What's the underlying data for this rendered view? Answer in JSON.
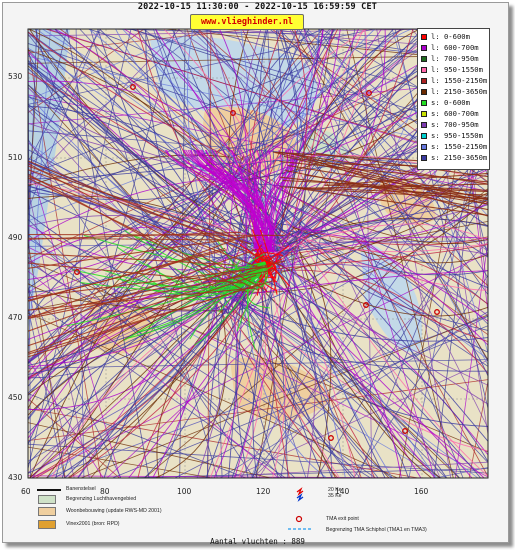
{
  "header": {
    "title": "2022-10-15 11:30:00 - 2022-10-15 16:59:59 CET",
    "brand": "www.vlieghinder.nl"
  },
  "axes": {
    "y_ticks": [
      "530",
      "510",
      "490",
      "470",
      "450",
      "430"
    ],
    "x_ticks": [
      "80",
      "100",
      "120",
      "140",
      "160"
    ],
    "origin_x": "60"
  },
  "legend": [
    {
      "label": "l: 0-600m",
      "color": "#ff0000"
    },
    {
      "label": "l: 600-700m",
      "color": "#aa00cc"
    },
    {
      "label": "l: 700-950m",
      "color": "#1f6b1f"
    },
    {
      "label": "l: 950-1550m",
      "color": "#ff66aa"
    },
    {
      "label": "l: 1550-2150m",
      "color": "#aa2222"
    },
    {
      "label": "l: 2150-3650m",
      "color": "#6b2a00"
    },
    {
      "label": "s: 0-600m",
      "color": "#22dd22"
    },
    {
      "label": "s: 600-700m",
      "color": "#c8e000"
    },
    {
      "label": "s: 700-950m",
      "color": "#7d3cb0"
    },
    {
      "label": "s: 950-1550m",
      "color": "#00d0d0"
    },
    {
      "label": "s: 1550-2150m",
      "color": "#6677dd"
    },
    {
      "label": "s: 2150-3650m",
      "color": "#3a3aa0"
    }
  ],
  "map_legend": {
    "runway": "Banenstelsel",
    "airport_boundary": "Begrenzing Luchthavengebied",
    "housing": "Woonbebouwing (update RWS-MD 2001)",
    "vinex": "Vinex2001 (bron: RPD)",
    "ke": "20 Ke\n35 Ke",
    "ke20": "20 Ke",
    "ke35": "35 Ke",
    "tma_exit": "TMA exit point",
    "tma_boundary": "Begrenzing TMA Schiphol  (TMA1 en TMA3)"
  },
  "footer": {
    "count_text": "Aantal vluchten : 889"
  }
}
